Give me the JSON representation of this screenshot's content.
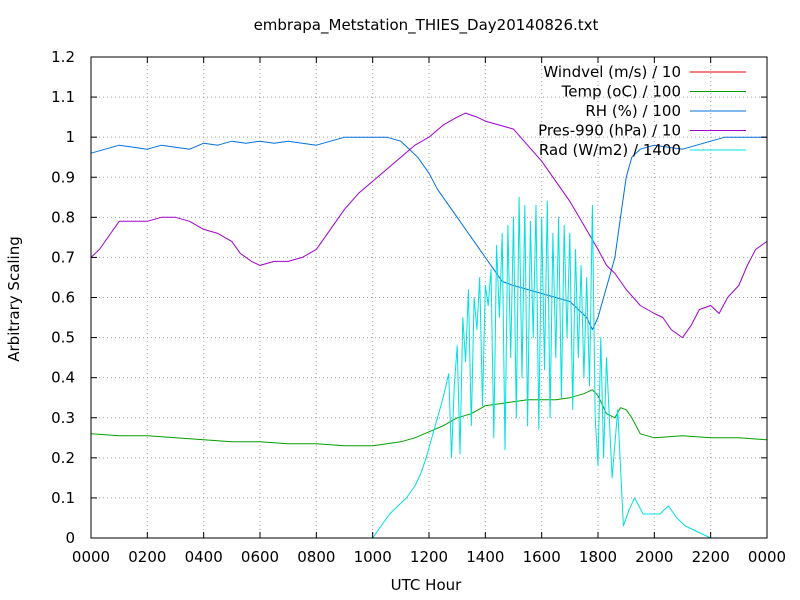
{
  "chart_data": {
    "type": "line",
    "title": "embrapa_Metstation_THIES_Day20140826.txt",
    "xlabel": "UTC Hour",
    "ylabel": "Arbitrary Scaling",
    "xlim": [
      0,
      24
    ],
    "ylim": [
      0,
      1.2
    ],
    "grid": true,
    "legend_position": "top-right",
    "x_ticks": [
      {
        "value": 0,
        "label": "0000"
      },
      {
        "value": 2,
        "label": "0200"
      },
      {
        "value": 4,
        "label": "0400"
      },
      {
        "value": 6,
        "label": "0600"
      },
      {
        "value": 8,
        "label": "0800"
      },
      {
        "value": 10,
        "label": "1000"
      },
      {
        "value": 12,
        "label": "1200"
      },
      {
        "value": 14,
        "label": "1400"
      },
      {
        "value": 16,
        "label": "1600"
      },
      {
        "value": 18,
        "label": "1800"
      },
      {
        "value": 20,
        "label": "2000"
      },
      {
        "value": 22,
        "label": "2200"
      },
      {
        "value": 24,
        "label": "0000"
      }
    ],
    "y_ticks": [
      {
        "value": 0,
        "label": "0"
      },
      {
        "value": 0.1,
        "label": "0.1"
      },
      {
        "value": 0.2,
        "label": "0.2"
      },
      {
        "value": 0.3,
        "label": "0.3"
      },
      {
        "value": 0.4,
        "label": "0.4"
      },
      {
        "value": 0.5,
        "label": "0.5"
      },
      {
        "value": 0.6,
        "label": "0.6"
      },
      {
        "value": 0.7,
        "label": "0.7"
      },
      {
        "value": 0.8,
        "label": "0.8"
      },
      {
        "value": 0.9,
        "label": "0.9"
      },
      {
        "value": 1.0,
        "label": "1"
      },
      {
        "value": 1.1,
        "label": "1.1"
      },
      {
        "value": 1.2,
        "label": "1.2"
      }
    ],
    "series": [
      {
        "name": "Windvel (m/s) / 10",
        "color": "#e00000",
        "x": [],
        "y": []
      },
      {
        "name": "Temp (oC) / 100",
        "color": "#00a000",
        "x": [
          0,
          1,
          2,
          3,
          4,
          5,
          6,
          7,
          8,
          9,
          9.5,
          10,
          10.5,
          11,
          11.5,
          12,
          12.5,
          13,
          13.5,
          14,
          14.5,
          15,
          15.5,
          16,
          16.5,
          17,
          17.5,
          17.8,
          18,
          18.3,
          18.6,
          18.8,
          19,
          19.2,
          19.5,
          20,
          21,
          22,
          23,
          24
        ],
        "y": [
          0.26,
          0.255,
          0.255,
          0.25,
          0.245,
          0.24,
          0.24,
          0.235,
          0.235,
          0.23,
          0.23,
          0.23,
          0.235,
          0.24,
          0.25,
          0.265,
          0.28,
          0.3,
          0.31,
          0.33,
          0.335,
          0.34,
          0.345,
          0.345,
          0.345,
          0.35,
          0.36,
          0.37,
          0.355,
          0.31,
          0.3,
          0.325,
          0.32,
          0.3,
          0.26,
          0.25,
          0.255,
          0.25,
          0.25,
          0.245
        ]
      },
      {
        "name": "RH (%) / 100",
        "color": "#0070e0",
        "x": [
          0,
          0.5,
          1,
          1.5,
          2,
          2.5,
          3,
          3.5,
          4,
          4.5,
          5,
          5.5,
          6,
          6.5,
          7,
          7.5,
          8,
          8.5,
          9,
          9.5,
          10,
          10.5,
          11,
          11.3,
          11.6,
          12,
          12.3,
          12.6,
          13,
          13.3,
          13.6,
          14,
          14.3,
          14.6,
          15,
          15.5,
          16,
          16.5,
          17,
          17.3,
          17.6,
          17.8,
          18,
          18.2,
          18.4,
          18.6,
          18.8,
          19,
          19.2,
          19.5,
          20,
          20.5,
          21,
          21.5,
          22,
          22.5,
          23,
          23.5,
          24
        ],
        "y": [
          0.96,
          0.97,
          0.98,
          0.975,
          0.97,
          0.98,
          0.975,
          0.97,
          0.985,
          0.98,
          0.99,
          0.985,
          0.99,
          0.985,
          0.99,
          0.985,
          0.98,
          0.99,
          1.0,
          1.0,
          1.0,
          1.0,
          0.99,
          0.97,
          0.95,
          0.91,
          0.87,
          0.84,
          0.8,
          0.77,
          0.74,
          0.7,
          0.67,
          0.64,
          0.63,
          0.62,
          0.61,
          0.6,
          0.59,
          0.57,
          0.55,
          0.52,
          0.55,
          0.6,
          0.65,
          0.7,
          0.8,
          0.9,
          0.95,
          0.97,
          0.98,
          0.975,
          0.97,
          0.98,
          0.99,
          1.0,
          1.0,
          1.0,
          1.0
        ]
      },
      {
        "name": "Pres-990 (hPa) / 10",
        "color": "#a000d0",
        "x": [
          0,
          0.3,
          0.7,
          1,
          1.5,
          2,
          2.5,
          3,
          3.5,
          4,
          4.5,
          5,
          5.3,
          5.7,
          6,
          6.5,
          7,
          7.5,
          8,
          8.5,
          9,
          9.5,
          10,
          10.5,
          11,
          11.5,
          12,
          12.5,
          13,
          13.3,
          13.7,
          14,
          14.5,
          15,
          15.5,
          16,
          16.5,
          17,
          17.5,
          18,
          18.3,
          18.6,
          19,
          19.5,
          20,
          20.3,
          20.6,
          21,
          21.3,
          21.6,
          22,
          22.3,
          22.6,
          23,
          23.3,
          23.6,
          24
        ],
        "y": [
          0.7,
          0.72,
          0.76,
          0.79,
          0.79,
          0.79,
          0.8,
          0.8,
          0.79,
          0.77,
          0.76,
          0.74,
          0.71,
          0.69,
          0.68,
          0.69,
          0.69,
          0.7,
          0.72,
          0.77,
          0.82,
          0.86,
          0.89,
          0.92,
          0.95,
          0.98,
          1.0,
          1.03,
          1.05,
          1.06,
          1.05,
          1.04,
          1.03,
          1.02,
          0.98,
          0.94,
          0.89,
          0.84,
          0.78,
          0.72,
          0.68,
          0.66,
          0.62,
          0.58,
          0.56,
          0.55,
          0.52,
          0.5,
          0.53,
          0.57,
          0.58,
          0.56,
          0.6,
          0.63,
          0.68,
          0.72,
          0.74
        ]
      },
      {
        "name": "Rad (W/m2) / 1400",
        "color": "#00e0e0",
        "x": [
          10.0,
          10.3,
          10.6,
          10.9,
          11.2,
          11.5,
          11.7,
          11.9,
          12.1,
          12.3,
          12.5,
          12.7,
          12.8,
          12.9,
          13.0,
          13.1,
          13.2,
          13.3,
          13.4,
          13.5,
          13.6,
          13.7,
          13.8,
          13.9,
          14.0,
          14.1,
          14.2,
          14.3,
          14.4,
          14.5,
          14.6,
          14.7,
          14.8,
          14.9,
          15.0,
          15.1,
          15.2,
          15.3,
          15.4,
          15.5,
          15.6,
          15.7,
          15.8,
          15.9,
          16.0,
          16.1,
          16.2,
          16.3,
          16.4,
          16.5,
          16.6,
          16.7,
          16.8,
          16.9,
          17.0,
          17.1,
          17.2,
          17.3,
          17.4,
          17.5,
          17.6,
          17.7,
          17.8,
          17.9,
          18.0,
          18.1,
          18.2,
          18.3,
          18.5,
          18.7,
          18.9,
          19.1,
          19.3,
          19.6,
          19.9,
          20.2,
          20.5,
          20.8,
          21.1,
          21.4,
          21.7,
          22.0
        ],
        "y": [
          0.0,
          0.03,
          0.06,
          0.08,
          0.1,
          0.13,
          0.16,
          0.2,
          0.25,
          0.3,
          0.35,
          0.41,
          0.2,
          0.38,
          0.48,
          0.21,
          0.55,
          0.44,
          0.62,
          0.28,
          0.6,
          0.52,
          0.65,
          0.33,
          0.63,
          0.58,
          0.67,
          0.25,
          0.73,
          0.55,
          0.76,
          0.22,
          0.78,
          0.45,
          0.8,
          0.3,
          0.85,
          0.4,
          0.83,
          0.28,
          0.79,
          0.5,
          0.83,
          0.27,
          0.8,
          0.42,
          0.84,
          0.3,
          0.76,
          0.45,
          0.8,
          0.35,
          0.78,
          0.5,
          0.76,
          0.32,
          0.72,
          0.45,
          0.68,
          0.4,
          0.65,
          0.38,
          0.83,
          0.3,
          0.18,
          0.5,
          0.2,
          0.45,
          0.15,
          0.32,
          0.03,
          0.07,
          0.1,
          0.06,
          0.06,
          0.06,
          0.08,
          0.05,
          0.03,
          0.02,
          0.01,
          0.0
        ]
      }
    ]
  }
}
